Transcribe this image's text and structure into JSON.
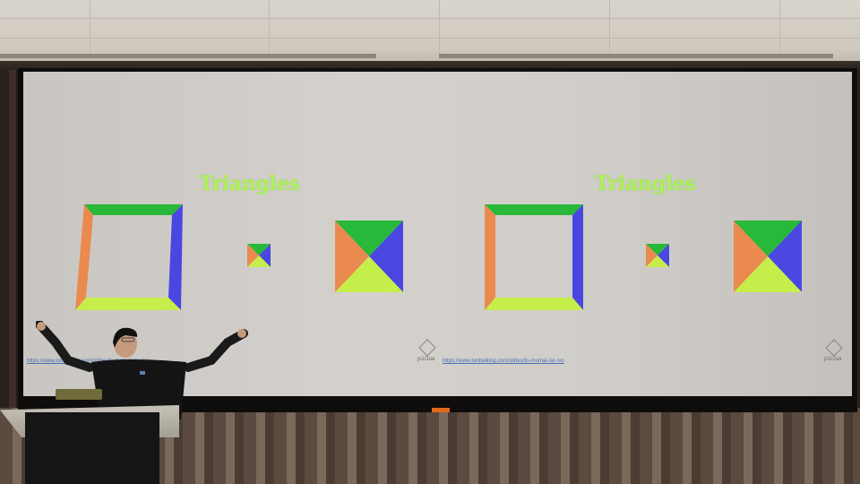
{
  "slides": [
    {
      "title": "Triangles",
      "url": "https://www.lordtalking.com/slides/to-rnomal-/ar-/vo",
      "logo_text": "js1/2ua"
    },
    {
      "title": "Triangles",
      "url": "https://www.lordtalking.com/slides/to-rnomal-/ar-/vo",
      "logo_text": "js1/2ua"
    }
  ],
  "colors": {
    "title": "#aef05a",
    "top": "#28b83a",
    "right": "#4a47e0",
    "bottom": "#c6ee4a",
    "left": "#ea8a4e",
    "screen": "#cfccc8"
  }
}
